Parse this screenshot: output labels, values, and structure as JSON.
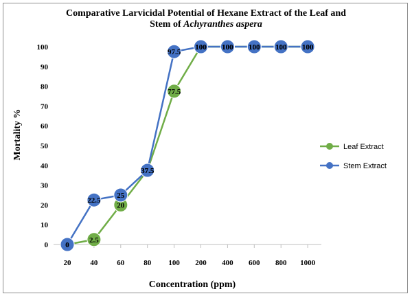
{
  "chart_data": {
    "type": "line",
    "title_main": "Comparative Larvicidal Potential of Hexane Extract of the Leaf and",
    "title_prefix": "Stem of ",
    "title_italic": "Achyranthes aspera",
    "xlabel": "Concentration  (ppm)",
    "ylabel": "Mortality %",
    "categories": [
      "20",
      "40",
      "60",
      "80",
      "100",
      "200",
      "400",
      "600",
      "800",
      "1000"
    ],
    "ylim": [
      0,
      100
    ],
    "yticks": [
      0,
      10,
      20,
      30,
      40,
      50,
      60,
      70,
      80,
      90,
      100
    ],
    "grid": false,
    "legend_position": "right",
    "series": [
      {
        "name": "Leaf Extract",
        "color": "#70ad47",
        "values": [
          0,
          2.5,
          20,
          37.5,
          77.5,
          100,
          100,
          100,
          100,
          100
        ],
        "labels": [
          "0",
          "2.5",
          "20",
          "37.5",
          "77.5",
          "100",
          "100",
          "100",
          "100",
          "100"
        ]
      },
      {
        "name": "Stem Extract",
        "color": "#4472c4",
        "values": [
          0,
          22.5,
          25,
          37.5,
          97.5,
          100,
          100,
          100,
          100,
          100
        ],
        "labels": [
          "0",
          "22.5",
          "25",
          "37.5",
          "97.5",
          "100",
          "100",
          "100",
          "100",
          "100"
        ]
      }
    ]
  }
}
